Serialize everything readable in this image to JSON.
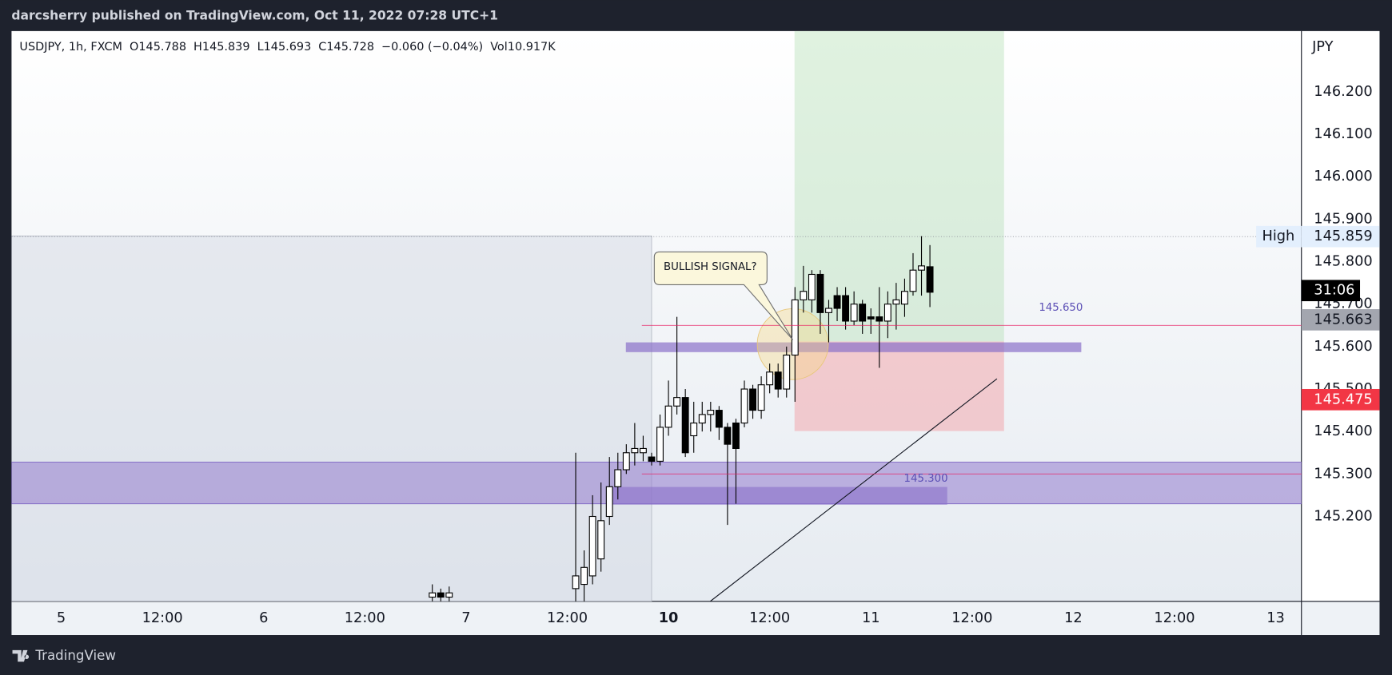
{
  "top_bar": "darcsherry published on TradingView.com, Oct 11, 2022 07:28 UTC+1",
  "footer": "TradingView",
  "chart_data": {
    "type": "candlestick",
    "legend": {
      "symbol": "USDJPY, 1h, FXCM",
      "open": "O145.788",
      "high": "H145.839",
      "low": "L145.693",
      "close": "C145.728",
      "change": "−0.060 (−0.04%)",
      "volume": "Vol10.917K"
    },
    "currency": "JPY",
    "x": [
      44,
      45,
      46,
      61,
      62,
      63,
      64,
      65,
      66,
      67,
      68,
      69,
      70,
      71,
      72,
      73,
      74,
      75,
      76,
      77,
      78,
      79,
      80,
      81,
      82,
      83,
      84,
      85,
      86,
      87,
      88,
      89,
      90,
      91,
      92,
      93,
      94,
      95,
      96,
      97,
      98,
      99,
      100,
      101,
      102,
      103
    ],
    "open": [
      145.01,
      145.02,
      145.01,
      145.03,
      145.04,
      145.06,
      145.1,
      145.2,
      145.27,
      145.31,
      145.35,
      145.35,
      145.34,
      145.33,
      145.41,
      145.46,
      145.48,
      145.39,
      145.42,
      145.44,
      145.45,
      145.41,
      145.42,
      145.42,
      145.5,
      145.45,
      145.51,
      145.54,
      145.5,
      145.58,
      145.71,
      145.71,
      145.77,
      145.68,
      145.72,
      145.72,
      145.66,
      145.7,
      145.67,
      145.67,
      145.66,
      145.7,
      145.7,
      145.73,
      145.78,
      145.788
    ],
    "high": [
      145.04,
      145.03,
      145.035,
      145.35,
      145.12,
      145.25,
      145.28,
      145.34,
      145.35,
      145.37,
      145.42,
      145.39,
      145.35,
      145.44,
      145.52,
      145.67,
      145.5,
      145.47,
      145.47,
      145.47,
      145.46,
      145.42,
      145.43,
      145.52,
      145.51,
      145.53,
      145.56,
      145.56,
      145.6,
      145.74,
      145.79,
      145.78,
      145.78,
      145.71,
      145.74,
      145.74,
      145.73,
      145.71,
      145.69,
      145.74,
      145.73,
      145.75,
      145.76,
      145.82,
      145.86,
      145.839
    ],
    "low": [
      145.0,
      145.0,
      145.0,
      145.0,
      145.0,
      145.04,
      145.07,
      145.18,
      145.24,
      145.3,
      145.32,
      145.33,
      145.32,
      145.32,
      145.39,
      145.44,
      145.34,
      145.35,
      145.4,
      145.4,
      145.38,
      145.18,
      145.23,
      145.41,
      145.43,
      145.43,
      145.49,
      145.48,
      145.48,
      145.47,
      145.68,
      145.68,
      145.63,
      145.61,
      145.66,
      145.64,
      145.65,
      145.63,
      145.63,
      145.55,
      145.62,
      145.64,
      145.67,
      145.72,
      145.72,
      145.693
    ],
    "close": [
      145.02,
      145.01,
      145.02,
      145.06,
      145.08,
      145.2,
      145.19,
      145.27,
      145.31,
      145.35,
      145.36,
      145.36,
      145.33,
      145.41,
      145.46,
      145.48,
      145.35,
      145.42,
      145.44,
      145.45,
      145.41,
      145.37,
      145.36,
      145.5,
      145.45,
      145.51,
      145.54,
      145.5,
      145.58,
      145.71,
      145.73,
      145.77,
      145.68,
      145.69,
      145.69,
      145.66,
      145.7,
      145.66,
      145.665,
      145.66,
      145.7,
      145.71,
      145.73,
      145.78,
      145.79,
      145.728
    ],
    "up_color": "#ffffff",
    "down_color": "#000000",
    "xlim": [
      -5.89,
      147.05
    ],
    "xticks": [
      {
        "value": 0,
        "label": "5"
      },
      {
        "value": 12,
        "label": "12:00"
      },
      {
        "value": 24,
        "label": "6"
      },
      {
        "value": 36,
        "label": "12:00"
      },
      {
        "value": 48,
        "label": "7"
      },
      {
        "value": 60,
        "label": "12:00"
      },
      {
        "value": 72,
        "label": "10"
      },
      {
        "value": 84,
        "label": "12:00"
      },
      {
        "value": 96,
        "label": "11"
      },
      {
        "value": 108,
        "label": "12:00"
      },
      {
        "value": 120,
        "label": "12"
      },
      {
        "value": 132,
        "label": "12:00"
      },
      {
        "value": 144,
        "label": "13"
      }
    ],
    "ylim": [
      145.0,
      146.343
    ],
    "yticks": [
      {
        "value": 145.2,
        "label": "145.200"
      },
      {
        "value": 145.3,
        "label": "145.300"
      },
      {
        "value": 145.4,
        "label": "145.400"
      },
      {
        "value": 145.5,
        "label": "145.500"
      },
      {
        "value": 145.6,
        "label": "145.600"
      },
      {
        "value": 145.7,
        "label": "145.700"
      },
      {
        "value": 145.8,
        "label": "145.800"
      },
      {
        "value": 145.9,
        "label": "145.900"
      },
      {
        "value": 146.0,
        "label": "146.000"
      },
      {
        "value": 146.1,
        "label": "146.100"
      },
      {
        "value": 146.2,
        "label": "146.200"
      }
    ],
    "levels": [
      {
        "value": 145.65,
        "label": "145.650"
      },
      {
        "value": 145.3,
        "label": "145.300"
      }
    ],
    "annotation": "BULLISH SIGNAL?",
    "high_marker": {
      "title": "High",
      "value": 145.859,
      "label": "145.859"
    },
    "price_tags": [
      {
        "value": 145.663,
        "label": "145.663",
        "countdown": "31:06",
        "color": "#a3a6af"
      },
      {
        "value": 145.475,
        "label": "145.475",
        "color": "#f23645"
      }
    ]
  }
}
